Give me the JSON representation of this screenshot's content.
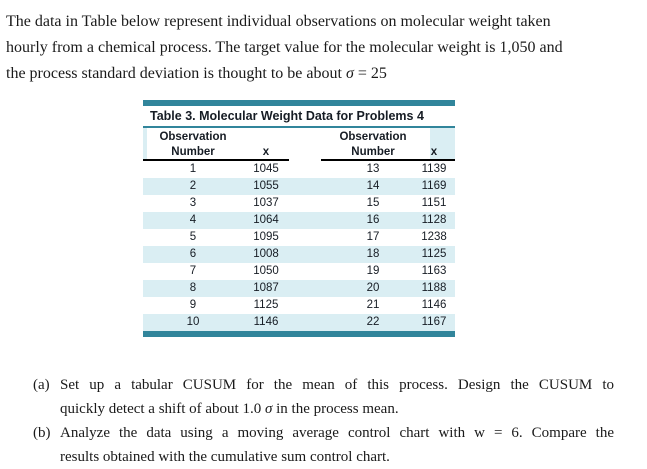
{
  "intro": {
    "line1": "The data in Table below represent individual observations on molecular weight taken",
    "line2": "hourly from a chemical process. The target value for the molecular weight is 1,050 and",
    "line3_pre": "the process standard deviation is thought to be about ",
    "sigma": "σ",
    "line3_post": " = 25"
  },
  "table": {
    "title": "Table 3. Molecular Weight Data for Problems 4",
    "header": {
      "observation": "Observation",
      "number": "Number",
      "x": "x"
    },
    "rows": [
      [
        "1",
        "1045",
        "13",
        "1139"
      ],
      [
        "2",
        "1055",
        "14",
        "1169"
      ],
      [
        "3",
        "1037",
        "15",
        "1151"
      ],
      [
        "4",
        "1064",
        "16",
        "1128"
      ],
      [
        "5",
        "1095",
        "17",
        "1238"
      ],
      [
        "6",
        "1008",
        "18",
        "1125"
      ],
      [
        "7",
        "1050",
        "19",
        "1163"
      ],
      [
        "8",
        "1087",
        "20",
        "1188"
      ],
      [
        "9",
        "1125",
        "21",
        "1146"
      ],
      [
        "10",
        "1146",
        "22",
        "1167"
      ]
    ]
  },
  "problems": {
    "a_label": "(a)",
    "a_line1": "Set up a tabular CUSUM for the mean of this process. Design the CUSUM to",
    "a_line2_pre": "quickly detect a shift of about 1.0 ",
    "a_sigma": "σ",
    "a_line2_post": " in the process mean.",
    "b_label": "(b)",
    "b_line1": "Analyze the data using a moving average control chart with w = 6. Compare the",
    "b_line2": "results obtained with the cumulative sum control chart."
  },
  "colors": {
    "teal": "#31859B",
    "row_alt": "#DAEEF3",
    "text": "#1A1A1A"
  }
}
